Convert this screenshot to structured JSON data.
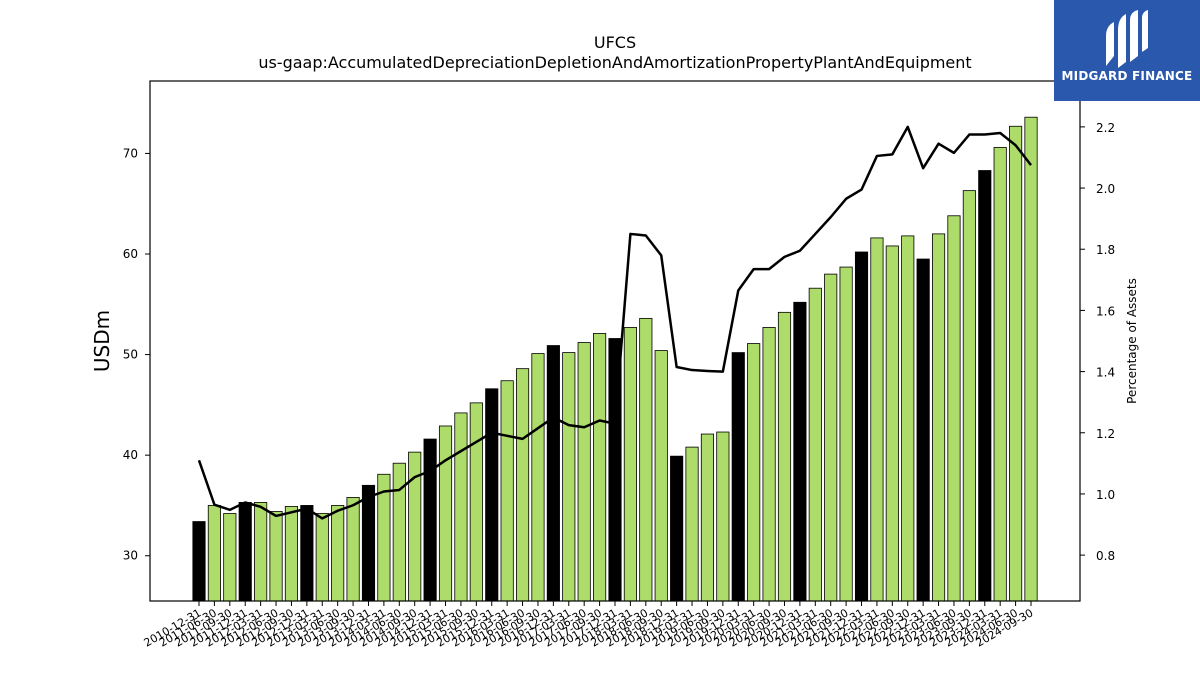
{
  "logo": {
    "text": "MIDGARD FINANCE"
  },
  "chart_data": {
    "type": "bar",
    "title": "UFCS",
    "subtitle": "us-gaap:AccumulatedDepreciationDepletionAndAmortizationPropertyPlantAndEquipment",
    "ylabel": "USDm",
    "y2label": "Percentage of Assets",
    "ylim": [
      25.5,
      77.2
    ],
    "y2lim": [
      0.65,
      2.35
    ],
    "yticks": [
      30,
      40,
      50,
      60,
      70
    ],
    "y2ticks": [
      0.8,
      1.0,
      1.2,
      1.4,
      1.6,
      1.8,
      2.0,
      2.2
    ],
    "colors": {
      "q4_bar": "#000000",
      "other_bar": "#addc6a",
      "line": "#000000"
    },
    "categories": [
      "2010-12-31",
      "2011-06-30",
      "2011-09-30",
      "2011-12-31",
      "2012-03-31",
      "2012-06-30",
      "2012-09-30",
      "2012-12-31",
      "2013-03-31",
      "2013-06-30",
      "2013-09-30",
      "2013-12-31",
      "2014-03-31",
      "2014-06-30",
      "2014-09-30",
      "2014-12-31",
      "2015-03-31",
      "2015-06-30",
      "2015-09-30",
      "2015-12-31",
      "2016-03-31",
      "2016-06-30",
      "2016-09-30",
      "2016-12-31",
      "2017-03-31",
      "2017-06-30",
      "2017-09-30",
      "2017-12-31",
      "2018-03-31",
      "2018-06-30",
      "2018-09-30",
      "2018-12-31",
      "2019-03-31",
      "2019-06-30",
      "2019-09-30",
      "2019-12-31",
      "2020-03-31",
      "2020-06-30",
      "2020-09-30",
      "2020-12-31",
      "2021-03-31",
      "2021-06-30",
      "2021-09-30",
      "2021-12-31",
      "2022-03-31",
      "2022-06-30",
      "2022-09-30",
      "2022-12-31",
      "2023-03-31",
      "2023-06-30",
      "2023-09-30",
      "2023-12-31",
      "2024-03-31",
      "2024-06-30",
      "2024-09-30"
    ],
    "series": [
      {
        "type": "bar",
        "values": [
          33.4,
          35.0,
          34.2,
          35.3,
          35.3,
          34.4,
          34.9,
          35.0,
          34.2,
          35.0,
          35.8,
          37.0,
          38.1,
          39.2,
          40.3,
          41.6,
          42.9,
          44.2,
          45.2,
          46.6,
          47.4,
          48.6,
          50.1,
          50.9,
          50.2,
          51.2,
          52.1,
          51.6,
          52.7,
          53.6,
          50.4,
          39.9,
          40.8,
          42.1,
          42.3,
          50.2,
          51.1,
          52.7,
          54.2,
          55.2,
          56.6,
          58.0,
          58.7,
          60.2,
          61.6,
          60.8,
          61.8,
          59.5,
          62.0,
          63.8,
          66.3,
          68.3,
          70.6,
          72.7,
          73.6
        ]
      },
      {
        "type": "line",
        "axis": "right",
        "values": [
          1.11,
          0.965,
          0.948,
          0.972,
          0.958,
          0.928,
          0.94,
          0.952,
          0.92,
          0.945,
          0.963,
          0.99,
          1.008,
          1.013,
          1.055,
          1.075,
          1.11,
          1.14,
          1.17,
          1.2,
          1.19,
          1.18,
          1.215,
          1.25,
          1.225,
          1.218,
          1.24,
          1.23,
          1.85,
          1.845,
          1.78,
          1.415,
          1.405,
          1.402,
          1.4,
          1.665,
          1.735,
          1.735,
          1.775,
          1.795,
          1.85,
          1.905,
          1.965,
          1.995,
          2.105,
          2.11,
          2.2,
          2.065,
          2.145,
          2.115,
          2.175,
          2.175,
          2.18,
          2.14,
          2.075
        ]
      }
    ]
  }
}
